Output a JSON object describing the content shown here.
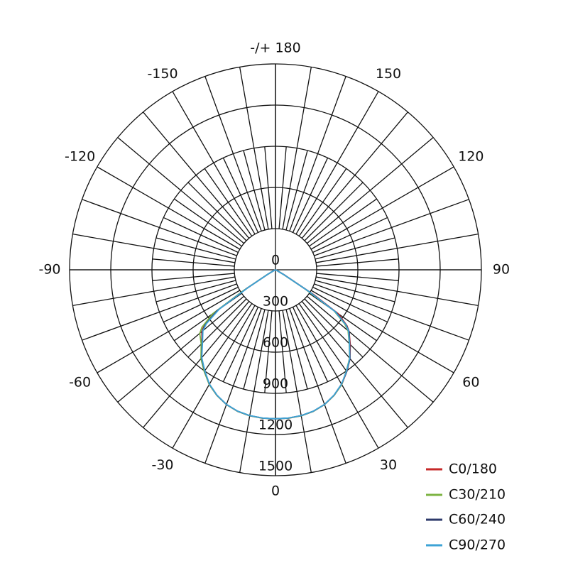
{
  "chart_data": {
    "type": "polar-line",
    "angle_unit": "degrees",
    "angle_zero": "bottom",
    "angle_direction": "positive to the right",
    "angle_tick_labels": [
      {
        "angle": 0,
        "text": "0"
      },
      {
        "angle": 30,
        "text": "30"
      },
      {
        "angle": 60,
        "text": "60"
      },
      {
        "angle": 90,
        "text": "90"
      },
      {
        "angle": 120,
        "text": "120"
      },
      {
        "angle": 150,
        "text": "150"
      },
      {
        "angle": 180,
        "text": "-/+ 180"
      },
      {
        "angle": -150,
        "text": "-150"
      },
      {
        "angle": -120,
        "text": "-120"
      },
      {
        "angle": -90,
        "text": "-90"
      },
      {
        "angle": -60,
        "text": "-60"
      },
      {
        "angle": -30,
        "text": "-30"
      }
    ],
    "radial_ticks": [
      0,
      300,
      600,
      900,
      1200,
      1500
    ],
    "radial_tick_labels": [
      "0",
      "300",
      "600",
      "900",
      "1200",
      "1500"
    ],
    "rlim": [
      0,
      1500
    ],
    "grid": true,
    "legend_position": "bottom-right",
    "angles": [
      -90,
      -80,
      -70,
      -65,
      -60,
      -57,
      -55,
      -52,
      -50,
      -45,
      -40,
      -35,
      -30,
      -25,
      -20,
      -15,
      -10,
      -5,
      0,
      5,
      10,
      15,
      20,
      25,
      30,
      35,
      40,
      45,
      50,
      52,
      55,
      57,
      60,
      65,
      70,
      80,
      90
    ],
    "series": [
      {
        "name": "C0/180",
        "color": "#c62828",
        "values": [
          0,
          0,
          0,
          10,
          60,
          250,
          520,
          660,
          700,
          757,
          840,
          900,
          965,
          1010,
          1045,
          1068,
          1080,
          1085,
          1085,
          1085,
          1080,
          1068,
          1045,
          1010,
          965,
          905,
          845,
          770,
          700,
          660,
          560,
          330,
          80,
          10,
          0,
          0,
          0
        ]
      },
      {
        "name": "C30/210",
        "color": "#7cb342",
        "values": [
          0,
          0,
          0,
          10,
          70,
          280,
          560,
          680,
          720,
          765,
          845,
          905,
          965,
          1010,
          1045,
          1068,
          1080,
          1085,
          1085,
          1085,
          1080,
          1068,
          1045,
          1010,
          965,
          900,
          840,
          760,
          690,
          640,
          520,
          260,
          60,
          10,
          0,
          0,
          0
        ]
      },
      {
        "name": "C60/240",
        "color": "#2e3a6b",
        "values": [
          0,
          0,
          0,
          10,
          60,
          250,
          520,
          650,
          695,
          755,
          838,
          900,
          962,
          1008,
          1044,
          1066,
          1079,
          1084,
          1085,
          1084,
          1079,
          1066,
          1044,
          1008,
          962,
          905,
          845,
          765,
          700,
          655,
          540,
          300,
          70,
          10,
          0,
          0,
          0
        ]
      },
      {
        "name": "C90/270",
        "color": "#3ea3d6",
        "values": [
          0,
          0,
          0,
          10,
          60,
          240,
          500,
          640,
          690,
          752,
          835,
          898,
          962,
          1008,
          1044,
          1066,
          1079,
          1084,
          1085,
          1084,
          1079,
          1066,
          1044,
          1008,
          962,
          902,
          842,
          762,
          695,
          650,
          530,
          290,
          70,
          10,
          0,
          0,
          0
        ]
      }
    ]
  }
}
